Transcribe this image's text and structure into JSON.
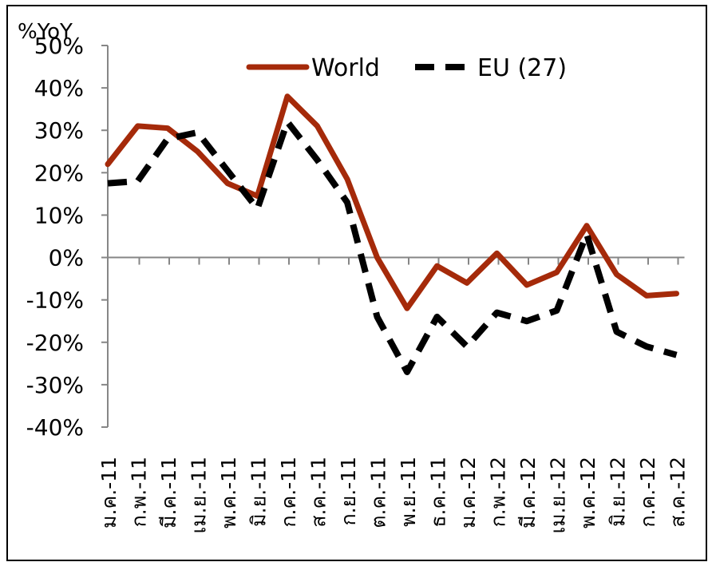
{
  "chart_data": {
    "type": "line",
    "unit_label": "%YoY",
    "categories": [
      "ม.ค.-11",
      "ก.พ.-11",
      "มี.ค.-11",
      "เม.ย.-11",
      "พ.ค.-11",
      "มิ.ย.-11",
      "ก.ค.-11",
      "ส.ค.-11",
      "ก.ย.-11",
      "ต.ค.-11",
      "พ.ย.-11",
      "ธ.ค.-11",
      "ม.ค.-12",
      "ก.พ.-12",
      "มี.ค.-12",
      "เม.ย.-12",
      "พ.ค.-12",
      "มิ.ย.-12",
      "ก.ค.-12",
      "ส.ค.-12"
    ],
    "yticks": [
      "50%",
      "40%",
      "30%",
      "20%",
      "10%",
      "0%",
      "-10%",
      "-20%",
      "-30%",
      "-40%"
    ],
    "ylim": [
      -40,
      50
    ],
    "series": [
      {
        "name": "World",
        "color": "#A52A0A",
        "style": "solid",
        "values": [
          22,
          31,
          30.5,
          25,
          17.5,
          14.5,
          38,
          31,
          18.5,
          0,
          -12,
          -2,
          -6,
          1,
          -6.5,
          -3.5,
          7.5,
          -4,
          -9,
          -8.5
        ]
      },
      {
        "name": "EU (27)",
        "color": "#000000",
        "style": "dashed",
        "values": [
          17.5,
          18,
          28,
          29.5,
          20.5,
          11.5,
          32,
          23,
          13,
          -14,
          -27,
          -14,
          -21,
          -13,
          -15,
          -12.5,
          5.5,
          -17.5,
          -21,
          -23
        ]
      }
    ],
    "legend_position": "top",
    "grid": false
  }
}
